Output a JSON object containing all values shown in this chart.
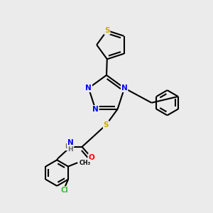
{
  "bg_color": "#ebebeb",
  "atom_colors": {
    "N": "#0000ff",
    "S": "#ccaa00",
    "O": "#ff0000",
    "Cl": "#33bb33",
    "C": "#000000",
    "H": "#666666"
  },
  "bond_color": "#000000",
  "bond_width": 1.5
}
